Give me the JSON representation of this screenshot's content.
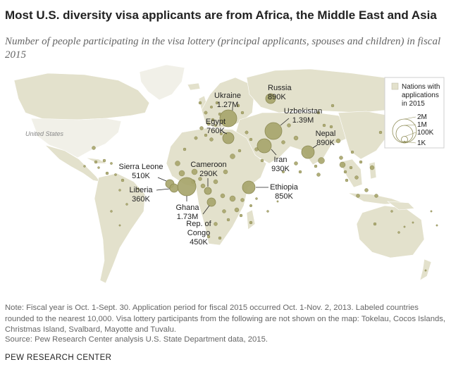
{
  "title": "Most U.S. diversity visa applicants are from Africa, the Middle East and Asia",
  "subtitle": "Number of people participating in the visa lottery (principal applicants, spouses and children) in fiscal 2015",
  "map_label_us": "United States",
  "legend": {
    "nations_label_line1": "Nations with",
    "nations_label_line2": "applications",
    "nations_label_line3": "in 2015",
    "size_labels": [
      "2M",
      "1M",
      "100K",
      "1K"
    ]
  },
  "countries": [
    {
      "name": "Russia",
      "value_label": "890K"
    },
    {
      "name": "Ukraine",
      "value_label": "1.27M"
    },
    {
      "name": "Uzbekistan",
      "value_label": "1.39M"
    },
    {
      "name": "Egypt",
      "value_label": "760K"
    },
    {
      "name": "Nepal",
      "value_label": "890K"
    },
    {
      "name": "Iran",
      "value_label": "930K"
    },
    {
      "name": "Sierra Leone",
      "value_label": "510K"
    },
    {
      "name": "Cameroon",
      "value_label": "290K"
    },
    {
      "name": "Liberia",
      "value_label": "360K"
    },
    {
      "name": "Ethiopia",
      "value_label": "850K"
    },
    {
      "name": "Ghana",
      "value_label": "1.73M"
    },
    {
      "name": "Rep. of",
      "name2": "Congo",
      "value_label": "450K"
    }
  ],
  "note_lines": [
    "Note: Fiscal year is Oct. 1-Sept. 30. Application period for fiscal 2015 occurred Oct. 1-Nov. 2, 2013. Labeled countries",
    "rounded to the nearest 10,000. Visa lottery participants from the following are not shown on the map: Tokelau, Cocos Islands,",
    "Christmas Island, Svalbard, Mayotte and Tuvalu."
  ],
  "source": "Source: Pew Research Center analysis U.S. State Department data, 2015.",
  "brand": "PEW RESEARCH CENTER",
  "colors": {
    "land_with_apps": "#e3e1cc",
    "land_without": "#f1f0e8",
    "bubble_fill": "#a7a56c",
    "bubble_stroke": "#8d8b55"
  }
}
